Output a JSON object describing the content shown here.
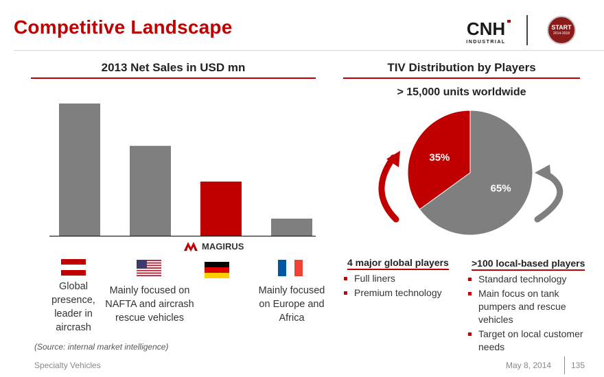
{
  "header": {
    "title": "Competitive Landscape",
    "cnh_logo_text": "CNH",
    "cnh_logo_subtext": "INDUSTRIAL",
    "start_logo_text": "START",
    "start_logo_subtext": "2014-2018",
    "accent_color": "#c00000"
  },
  "sales": {
    "title": "2013 Net Sales in USD mn",
    "magirus_label": "MAGIRUS",
    "players": [
      {
        "flag": "austria-flag",
        "caption": "Global presence, leader in aircrash"
      },
      {
        "flag": "usa-flag",
        "caption": "Mainly focused on NAFTA and aircrash rescue vehicles"
      },
      {
        "flag": "germany-flag",
        "caption": ""
      },
      {
        "flag": "france-flag",
        "caption": "Mainly focused on Europe and Africa"
      }
    ]
  },
  "chart_data": [
    {
      "type": "bar",
      "categories": [
        "",
        "",
        "",
        ""
      ],
      "values": [
        100,
        68,
        41,
        13
      ],
      "colors": [
        "#7f7f7f",
        "#7f7f7f",
        "#c00000",
        "#7f7f7f"
      ],
      "title": "2013 Net Sales in USD mn",
      "xlabel": "",
      "ylabel": "",
      "ylim": [
        0,
        100
      ],
      "grid": false
    },
    {
      "type": "pie",
      "categories": [
        "4 major global players",
        ">100 local-based players"
      ],
      "values": [
        35,
        65
      ],
      "labels": [
        "35%",
        "65%"
      ],
      "colors": [
        "#c00000",
        "#7f7f7f"
      ],
      "title": "TIV Distribution by Players"
    }
  ],
  "tiv": {
    "title": "TIV Distribution by Players",
    "subtitle": "> 15,000 units worldwide",
    "global": {
      "heading": "4 major global players",
      "bullets": [
        "Full liners",
        "Premium technology"
      ]
    },
    "local": {
      "heading": ">100 local-based players",
      "bullets": [
        "Standard technology",
        "Main focus on tank pumpers and rescue vehicles",
        "Target on local customer needs"
      ]
    }
  },
  "footer": {
    "source": "(Source: internal market intelligence)",
    "left": "Specialty Vehicles",
    "date": "May 8, 2014",
    "page": "135"
  }
}
